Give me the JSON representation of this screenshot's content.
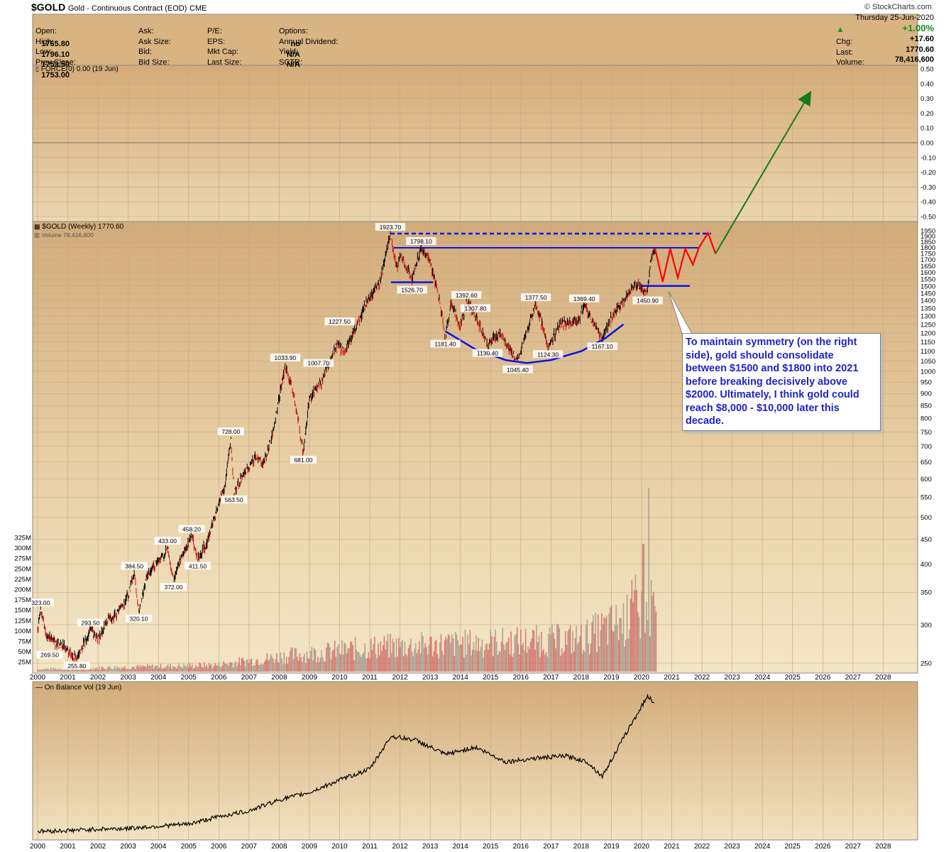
{
  "header": {
    "symbol": "$GOLD",
    "description": "Gold - Continuous Contract (EOD)",
    "exchange": "CME",
    "watermark": "© StockCharts.com",
    "date": "Thursday  25-Jun-2020",
    "pct_change": "+1.00%",
    "quote_left": [
      {
        "label": "Open:",
        "value": "1765.80"
      },
      {
        "label": "High:",
        "value": "1796.10"
      },
      {
        "label": "Low:",
        "value": "1753.50"
      },
      {
        "label": "Prev Close:",
        "value": "1753.00"
      }
    ],
    "quote_mid": [
      {
        "label": "Ask:",
        "value": ""
      },
      {
        "label": "Ask Size:",
        "value": ""
      },
      {
        "label": "Bid:",
        "value": ""
      },
      {
        "label": "Bid Size:",
        "value": ""
      }
    ],
    "quote_mid2": [
      {
        "label": "P/E:",
        "value": ""
      },
      {
        "label": "EPS:",
        "value": ""
      },
      {
        "label": "Mkt Cap:",
        "value": ""
      },
      {
        "label": "Last Size:",
        "value": ""
      }
    ],
    "quote_right": [
      {
        "label": "Options:",
        "value": "no"
      },
      {
        "label": "Annual Dividend:",
        "value": "N/A"
      },
      {
        "label": "Yield:",
        "value": "N/A"
      },
      {
        "label": "SCTR:",
        "value": ""
      }
    ],
    "quote_far": [
      {
        "label": "Chg:",
        "value": "+17.60"
      },
      {
        "label": "Last:",
        "value": "1770.60"
      },
      {
        "label": "Volume:",
        "value": "78,416,600"
      }
    ]
  },
  "panels": {
    "force_label": "FORCE(0) 0.00 (19 Jun)",
    "price_label": "$GOLD (Weekly) 1770.60",
    "volume_label": "Volume 78,416,600",
    "obv_label": "On Balance Vol (19 Jun)"
  },
  "note": "To maintain symmetry (on the right side), gold should consolidate between $1500 and $1800 into 2021 before breaking decisively above $2000. Ultimately, I think gold could reach $8,000 - $10,000 later this decade.",
  "colors": {
    "panel_bg": "#d4b080",
    "panel_bg_light": "#f0e2c2",
    "blue_lines": "#0a14e6",
    "red_projection": "#ff0000",
    "green_arrow": "#167a18",
    "note_text": "#1f23c8"
  },
  "chart_data": [
    {
      "type": "line",
      "panel": "FORCE(0)",
      "y_ticks": [
        "0.50",
        "0.40",
        "0.30",
        "0.20",
        "0.10",
        "0.00",
        "-0.10",
        "-0.20",
        "-0.30",
        "-0.40",
        "-0.50"
      ],
      "ylim": [
        -0.55,
        0.55
      ]
    },
    {
      "type": "line",
      "panel": "$GOLD (Weekly), log scale",
      "scale": "log",
      "x_ticks": [
        "2000",
        "2001",
        "2002",
        "2003",
        "2004",
        "2005",
        "2006",
        "2007",
        "2008",
        "2009",
        "2010",
        "2011",
        "2012",
        "2013",
        "2014",
        "2015",
        "2016",
        "2017",
        "2018",
        "2019",
        "2020",
        "2021",
        "2022",
        "2023",
        "2024",
        "2025",
        "2026",
        "2027",
        "2028"
      ],
      "y_ticks": [
        1950,
        1900,
        1850,
        1800,
        1750,
        1700,
        1650,
        1600,
        1550,
        1500,
        1450,
        1400,
        1350,
        1300,
        1250,
        1200,
        1150,
        1100,
        1050,
        1000,
        950,
        900,
        850,
        800,
        750,
        700,
        650,
        600,
        550,
        500,
        450,
        400,
        350,
        300,
        250
      ],
      "volume_ticks": [
        "325M",
        "300M",
        "275M",
        "250M",
        "225M",
        "200M",
        "175M",
        "150M",
        "125M",
        "100M",
        "75M",
        "50M",
        "25M"
      ],
      "price_series": [
        [
          2000.0,
          290
        ],
        [
          2000.1,
          323
        ],
        [
          2000.3,
          285
        ],
        [
          2000.6,
          275
        ],
        [
          2000.9,
          270
        ],
        [
          2001.1,
          262
        ],
        [
          2001.3,
          256
        ],
        [
          2001.6,
          280
        ],
        [
          2001.75,
          293.5
        ],
        [
          2002.0,
          280
        ],
        [
          2002.3,
          305
        ],
        [
          2002.6,
          315
        ],
        [
          2003.0,
          345
        ],
        [
          2003.2,
          384.5
        ],
        [
          2003.35,
          320.1
        ],
        [
          2003.6,
          375
        ],
        [
          2003.9,
          400
        ],
        [
          2004.2,
          420
        ],
        [
          2004.3,
          433
        ],
        [
          2004.5,
          372
        ],
        [
          2004.8,
          420
        ],
        [
          2005.0,
          440
        ],
        [
          2005.1,
          458.2
        ],
        [
          2005.3,
          411.5
        ],
        [
          2005.6,
          440
        ],
        [
          2005.9,
          510
        ],
        [
          2006.2,
          580
        ],
        [
          2006.4,
          728
        ],
        [
          2006.5,
          563.5
        ],
        [
          2006.8,
          610
        ],
        [
          2007.2,
          660
        ],
        [
          2007.5,
          650
        ],
        [
          2007.8,
          750
        ],
        [
          2008.0,
          880
        ],
        [
          2008.2,
          1033.9
        ],
        [
          2008.5,
          880
        ],
        [
          2008.8,
          681
        ],
        [
          2009.0,
          880
        ],
        [
          2009.4,
          950
        ],
        [
          2009.9,
          1130
        ],
        [
          2010.2,
          1100
        ],
        [
          2010.5,
          1220
        ],
        [
          2010.9,
          1390
        ],
        [
          2011.3,
          1500
        ],
        [
          2011.68,
          1923.7
        ],
        [
          2011.9,
          1620
        ],
        [
          2012.0,
          1740
        ],
        [
          2012.4,
          1560
        ],
        [
          2012.7,
          1798.1
        ],
        [
          2013.0,
          1680
        ],
        [
          2013.3,
          1420
        ],
        [
          2013.5,
          1181.4
        ],
        [
          2013.7,
          1390
        ],
        [
          2014.0,
          1230
        ],
        [
          2014.2,
          1392.6
        ],
        [
          2014.5,
          1307.8
        ],
        [
          2014.9,
          1130.4
        ],
        [
          2015.3,
          1200
        ],
        [
          2015.9,
          1045.4
        ],
        [
          2016.5,
          1377.5
        ],
        [
          2016.9,
          1124.3
        ],
        [
          2017.3,
          1250
        ],
        [
          2017.9,
          1270
        ],
        [
          2018.1,
          1369.4
        ],
        [
          2018.7,
          1167.1
        ],
        [
          2019.0,
          1290
        ],
        [
          2019.5,
          1420
        ],
        [
          2019.8,
          1520
        ],
        [
          2020.2,
          1450.9
        ],
        [
          2020.3,
          1700
        ],
        [
          2020.45,
          1770.6
        ]
      ],
      "price_labels": [
        {
          "x": 2000.1,
          "y": 323.0,
          "text": "323.00"
        },
        {
          "x": 2000.4,
          "y": 269.5,
          "text": "269.50"
        },
        {
          "x": 2001.3,
          "y": 255.8,
          "text": "255.80"
        },
        {
          "x": 2001.75,
          "y": 293.5,
          "text": "293.50"
        },
        {
          "x": 2003.2,
          "y": 384.5,
          "text": "384.50"
        },
        {
          "x": 2003.35,
          "y": 320.1,
          "text": "320.10"
        },
        {
          "x": 2004.3,
          "y": 433.0,
          "text": "433.00"
        },
        {
          "x": 2004.5,
          "y": 372.0,
          "text": "372.00"
        },
        {
          "x": 2005.1,
          "y": 458.2,
          "text": "458.20"
        },
        {
          "x": 2005.3,
          "y": 411.5,
          "text": "411.50"
        },
        {
          "x": 2006.4,
          "y": 728.0,
          "text": "728.00"
        },
        {
          "x": 2006.5,
          "y": 563.5,
          "text": "563.50"
        },
        {
          "x": 2008.2,
          "y": 1033.9,
          "text": "1033.90"
        },
        {
          "x": 2008.8,
          "y": 681.0,
          "text": "681.00"
        },
        {
          "x": 2009.3,
          "y": 1007.7,
          "text": "1007.70"
        },
        {
          "x": 2010.0,
          "y": 1227.5,
          "text": "1227.50"
        },
        {
          "x": 2011.68,
          "y": 1923.7,
          "text": "1923.70"
        },
        {
          "x": 2012.7,
          "y": 1798.1,
          "text": "1798.10"
        },
        {
          "x": 2012.4,
          "y": 1526.7,
          "text": "1526.70"
        },
        {
          "x": 2013.5,
          "y": 1181.4,
          "text": "1181.40"
        },
        {
          "x": 2014.2,
          "y": 1392.6,
          "text": "1392.60"
        },
        {
          "x": 2014.5,
          "y": 1307.8,
          "text": "1307.80"
        },
        {
          "x": 2014.9,
          "y": 1130.4,
          "text": "1130.40"
        },
        {
          "x": 2015.9,
          "y": 1045.4,
          "text": "1045.40"
        },
        {
          "x": 2016.5,
          "y": 1377.5,
          "text": "1377.50"
        },
        {
          "x": 2016.9,
          "y": 1124.3,
          "text": "1124.30"
        },
        {
          "x": 2018.1,
          "y": 1369.4,
          "text": "1369.40"
        },
        {
          "x": 2018.7,
          "y": 1167.1,
          "text": "1167.10"
        },
        {
          "x": 2020.2,
          "y": 1450.9,
          "text": "1450.90"
        }
      ],
      "annotations": {
        "dashed_resistance": {
          "y": 1923.7,
          "x_from": 2011.68,
          "x_to": 2022.3
        },
        "resistance": {
          "y": 1798.1,
          "x_from": 2011.8,
          "x_to": 2021.9
        },
        "left_support": {
          "y": 1526.7,
          "x_from": 2011.7,
          "x_to": 2013.1
        },
        "right_support": {
          "y": 1500,
          "x_from": 2020.0,
          "x_to": 2021.6
        },
        "cup_arc": [
          [
            2013.5,
            1210
          ],
          [
            2014.5,
            1110
          ],
          [
            2015.5,
            1055
          ],
          [
            2016.2,
            1040
          ],
          [
            2017.0,
            1055
          ],
          [
            2018.0,
            1100
          ],
          [
            2018.8,
            1170
          ],
          [
            2019.4,
            1250
          ]
        ],
        "red_projection": [
          [
            2020.45,
            1790
          ],
          [
            2020.7,
            1530
          ],
          [
            2020.95,
            1790
          ],
          [
            2021.2,
            1560
          ],
          [
            2021.45,
            1790
          ],
          [
            2021.7,
            1660
          ],
          [
            2021.9,
            1800
          ],
          [
            2022.2,
            1930
          ],
          [
            2022.45,
            1750
          ]
        ],
        "green_arrow": {
          "from_x": 2022.45,
          "to_x": 2025.5,
          "from_y": 1750,
          "force_to_y": 0.31
        }
      }
    },
    {
      "type": "line",
      "panel": "On Balance Vol",
      "x_ticks": [
        "2000",
        "2001",
        "2002",
        "2003",
        "2004",
        "2005",
        "2006",
        "2007",
        "2008",
        "2009",
        "2010",
        "2011",
        "2012",
        "2013",
        "2014",
        "2015",
        "2016",
        "2017",
        "2018",
        "2019",
        "2020",
        "2021",
        "2022",
        "2023",
        "2024",
        "2025",
        "2026",
        "2027",
        "2028"
      ],
      "series": [
        [
          2000,
          5
        ],
        [
          2001,
          6
        ],
        [
          2002,
          8
        ],
        [
          2003,
          9
        ],
        [
          2004,
          12
        ],
        [
          2005,
          15
        ],
        [
          2006,
          25
        ],
        [
          2007,
          33
        ],
        [
          2008,
          48
        ],
        [
          2009,
          58
        ],
        [
          2010,
          75
        ],
        [
          2011,
          90
        ],
        [
          2011.7,
          135
        ],
        [
          2012.5,
          130
        ],
        [
          2013.5,
          110
        ],
        [
          2014.5,
          120
        ],
        [
          2015.5,
          100
        ],
        [
          2016.5,
          105
        ],
        [
          2017.5,
          108
        ],
        [
          2018.2,
          100
        ],
        [
          2018.7,
          80
        ],
        [
          2019.5,
          140
        ],
        [
          2020.2,
          190
        ],
        [
          2020.45,
          180
        ]
      ]
    }
  ]
}
